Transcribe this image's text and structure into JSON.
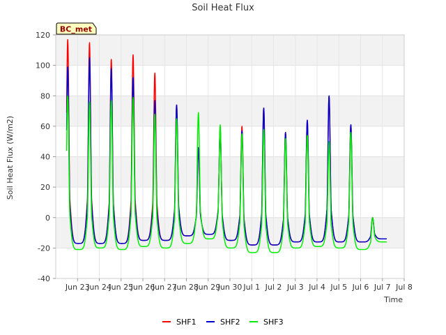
{
  "chart_data": {
    "type": "line",
    "title": "Soil Heat Flux",
    "xlabel": "Time",
    "ylabel": "Soil Heat Flux (W/m2)",
    "site_label": "BC_met",
    "ylim": [
      -40,
      120
    ],
    "xlim": [
      "2000-06-22",
      "2000-07-08"
    ],
    "yticks": [
      -40,
      -20,
      0,
      20,
      40,
      60,
      80,
      100,
      120
    ],
    "xticks": [
      "Jun 23",
      "Jun 24",
      "Jun 25",
      "Jun 26",
      "Jun 27",
      "Jun 28",
      "Jun 29",
      "Jun 30",
      "Jul 1",
      "Jul 2",
      "Jul 3",
      "Jul 4",
      "Jul 5",
      "Jul 6",
      "Jul 7",
      "Jul 8"
    ],
    "grid": true,
    "legend_position": "bottom",
    "series": [
      {
        "name": "SHF1",
        "color": "#ff0000",
        "start_day": 0.5,
        "end_day": 15.2,
        "daily_peak": [
          117,
          115,
          104,
          107,
          95,
          74,
          46,
          59,
          60,
          72,
          56,
          64,
          80,
          61,
          0
        ],
        "daily_min": [
          -17,
          -17,
          -17,
          -15,
          -15,
          -12,
          -11,
          -15,
          -18,
          -18,
          -16,
          -16,
          -16,
          -16,
          -14
        ]
      },
      {
        "name": "SHF2",
        "color": "#0000cc",
        "start_day": 0.5,
        "end_day": 15.2,
        "daily_peak": [
          99,
          105,
          98,
          92,
          77,
          74,
          46,
          58,
          57,
          72,
          56,
          64,
          80,
          61,
          0
        ],
        "daily_min": [
          -17,
          -17,
          -17,
          -15,
          -15,
          -12,
          -11,
          -15,
          -18,
          -18,
          -16,
          -16,
          -16,
          -16,
          -14
        ]
      },
      {
        "name": "SHF3",
        "color": "#00ee00",
        "start_day": 0.5,
        "end_day": 15.2,
        "daily_peak": [
          80,
          76,
          77,
          79,
          68,
          65,
          69,
          61,
          55,
          58,
          52,
          54,
          50,
          56,
          0
        ],
        "daily_min": [
          -21,
          -20,
          -21,
          -19,
          -20,
          -17,
          -14,
          -20,
          -23,
          -23,
          -20,
          -19,
          -20,
          -21,
          -16
        ]
      }
    ]
  }
}
